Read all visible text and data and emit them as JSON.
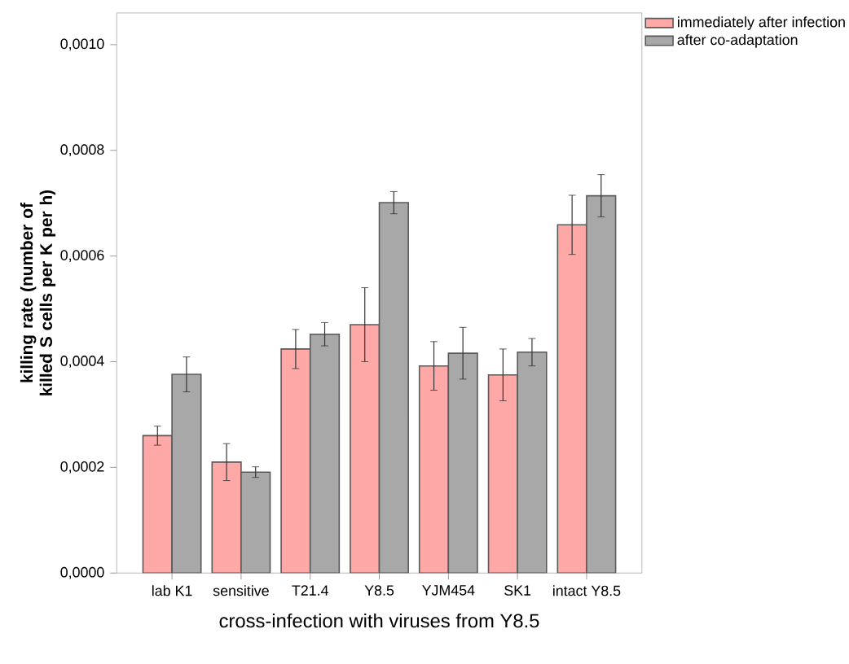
{
  "chart_data": {
    "type": "bar",
    "xlabel": "cross-infection with viruses from Y8.5",
    "ylabel": "killing rate (number of killed S cells per K per h)",
    "categories": [
      "lab K1",
      "sensitive",
      "T21.4",
      "Y8.5",
      "YJM454",
      "SK1",
      "intact Y8.5"
    ],
    "series": [
      {
        "name": "immediately after infection",
        "color": "#fea8a7",
        "values": [
          0.00026,
          0.00021,
          0.000424,
          0.00047,
          0.000392,
          0.000375,
          0.000659
        ],
        "errors": [
          1.8e-05,
          3.5e-05,
          3.7e-05,
          7e-05,
          4.6e-05,
          4.9e-05,
          5.6e-05
        ]
      },
      {
        "name": "after co-adaptation",
        "color": "#a8a8a8",
        "values": [
          0.000376,
          0.000191,
          0.000452,
          0.000701,
          0.000416,
          0.000418,
          0.000714
        ],
        "errors": [
          3.3e-05,
          1e-05,
          2.2e-05,
          2.1e-05,
          4.9e-05,
          2.6e-05,
          4e-05
        ]
      }
    ],
    "ylim": [
      0,
      0.00106
    ],
    "yticks": [
      {
        "value": 0,
        "label": "0,0000"
      },
      {
        "value": 0.0002,
        "label": "0,0002"
      },
      {
        "value": 0.0004,
        "label": "0,0004"
      },
      {
        "value": 0.0006,
        "label": "0,0006"
      },
      {
        "value": 0.0008,
        "label": "0,0008"
      },
      {
        "value": 0.001,
        "label": "0,0010"
      }
    ],
    "legend": "top right",
    "grid": false
  }
}
